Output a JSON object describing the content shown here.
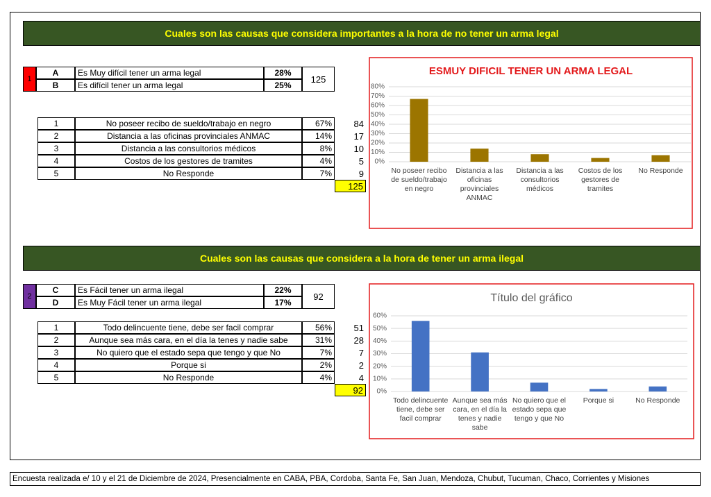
{
  "sections": [
    {
      "title": "Cuales son las causas que considera importantes a la hora de no tener un arma legal",
      "group": {
        "id": "1",
        "color": "#ff0000",
        "rows": [
          [
            "A",
            "Es Muy difícil tener un arma legal",
            "28%"
          ],
          [
            "B",
            "Es difícil tener un arma legal",
            "25%"
          ]
        ],
        "count": "125"
      },
      "items": [
        [
          "1",
          "No poseer recibo de sueldo/trabajo en negro",
          "67%",
          "84"
        ],
        [
          "2",
          "Distancia a las oficinas provinciales ANMAC",
          "14%",
          "17"
        ],
        [
          "3",
          "Distancia a las consultorios médicos",
          "8%",
          "10"
        ],
        [
          "4",
          "Costos de los gestores de tramites",
          "4%",
          "5"
        ],
        [
          "5",
          "No Responde",
          "7%",
          "9"
        ]
      ],
      "total": "125"
    },
    {
      "title": "Cuales son las causas que considera a la hora de tener un arma ilegal",
      "group": {
        "id": "2",
        "color": "#7030a0",
        "rows": [
          [
            "C",
            "Es Fácil tener un arma ilegal",
            "22%"
          ],
          [
            "D",
            "Es Muy Fácil tener un arma ilegal",
            "17%"
          ]
        ],
        "count": "92"
      },
      "items": [
        [
          "1",
          "Todo delincuente tiene, debe ser facil comprar",
          "56%",
          "51"
        ],
        [
          "2",
          "Aunque sea más cara, en el día la tenes y nadie sabe",
          "31%",
          "28"
        ],
        [
          "3",
          "No quiero que el estado sepa que tengo y que No",
          "7%",
          "7"
        ],
        [
          "4",
          "Porque si",
          "2%",
          "2"
        ],
        [
          "5",
          "No Responde",
          "4%",
          "4"
        ]
      ],
      "total": "92"
    }
  ],
  "chart_data": [
    {
      "type": "bar",
      "title": "ESMUY DIFICIL TENER UN ARMA LEGAL",
      "title_color": "#e31a1c",
      "categories": [
        "No poseer recibo de sueldo/trabajo en negro",
        "Distancia a las oficinas provinciales ANMAC",
        "Distancia a las consultorios médicos",
        "Costos de los gestores de tramites",
        "No Responde"
      ],
      "values": [
        67,
        14,
        8,
        4,
        7
      ],
      "color": "#9c7500",
      "ylim": [
        0,
        80
      ],
      "yticks": [
        {
          "value": 0,
          "label": "0%"
        },
        {
          "value": 10,
          "label": "10%"
        },
        {
          "value": 20,
          "label": "20%"
        },
        {
          "value": 30,
          "label": "30%"
        },
        {
          "value": 40,
          "label": "40%"
        },
        {
          "value": 50,
          "label": "50%"
        },
        {
          "value": 60,
          "label": "60%"
        },
        {
          "value": 70,
          "label": "70%"
        },
        {
          "value": 80,
          "label": "80%"
        }
      ],
      "grid": true
    },
    {
      "type": "bar",
      "title": "Título del gráfico",
      "title_color": "#595959",
      "categories": [
        "Todo delincuente tiene, debe ser facil comprar",
        "Aunque sea más cara, en el día la tenes y nadie sabe",
        "No quiero que el estado sepa que tengo y que No",
        "Porque si",
        "No Responde"
      ],
      "values": [
        56,
        31,
        7,
        2,
        4
      ],
      "color": "#4472c4",
      "ylim": [
        0,
        60
      ],
      "yticks": [
        {
          "value": 0,
          "label": "0%"
        },
        {
          "value": 10,
          "label": "10%"
        },
        {
          "value": 20,
          "label": "20%"
        },
        {
          "value": 30,
          "label": "30%"
        },
        {
          "value": 40,
          "label": "40%"
        },
        {
          "value": 50,
          "label": "50%"
        },
        {
          "value": 60,
          "label": "60%"
        }
      ],
      "grid": true
    }
  ],
  "footer": "Encuesta realizada e/ 10 y el 21 de Diciembre de 2024, Presencialmente en CABA, PBA, Cordoba, Santa Fe, San Juan, Mendoza, Chubut, Tucuman, Chaco, Corrientes y Misiones"
}
